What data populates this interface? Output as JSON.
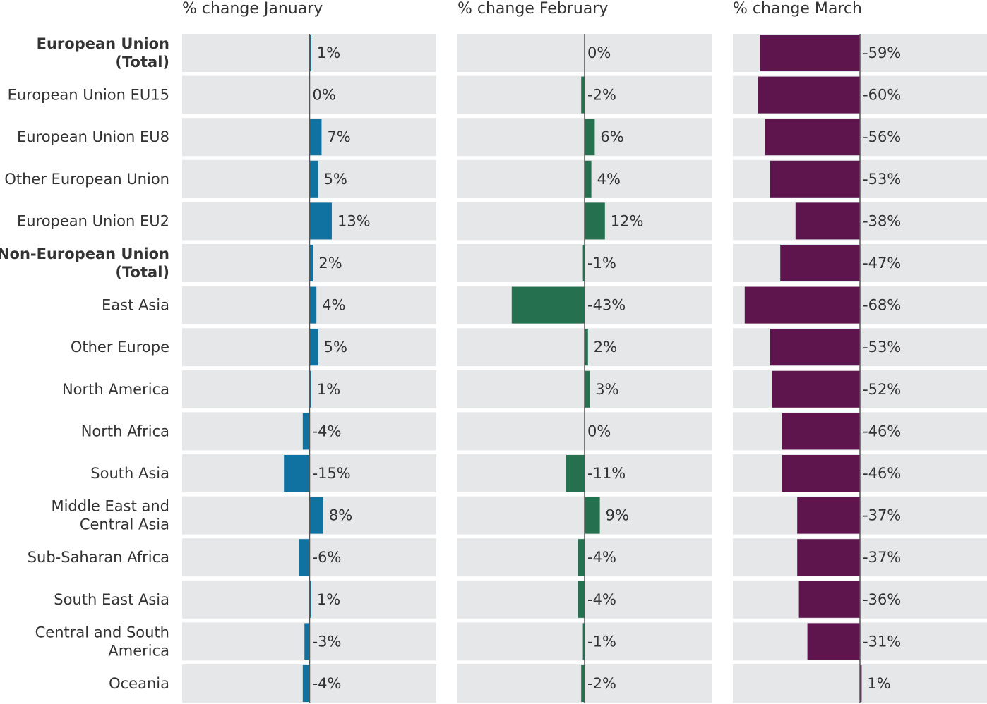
{
  "chart_data": {
    "type": "bar",
    "orientation": "horizontal",
    "categories": [
      "European Union (Total)",
      "European Union EU15",
      "European Union EU8",
      "Other European Union",
      "European Union EU2",
      "Non-European Union (Total)",
      "East Asia",
      "Other Europe",
      "North America",
      "North Africa",
      "South Asia",
      "Middle East and Central Asia",
      "Sub-Saharan Africa",
      "South East Asia",
      "Central and South America",
      "Oceania"
    ],
    "category_lines": [
      [
        "European Union",
        "(Total)"
      ],
      [
        "European Union EU15"
      ],
      [
        "European Union EU8"
      ],
      [
        "Other European Union"
      ],
      [
        "European Union EU2"
      ],
      [
        "Non-European Union",
        "(Total)"
      ],
      [
        "East Asia"
      ],
      [
        "Other Europe"
      ],
      [
        "North America"
      ],
      [
        "North Africa"
      ],
      [
        "South Asia"
      ],
      [
        "Middle East and",
        "Central Asia"
      ],
      [
        "Sub-Saharan Africa"
      ],
      [
        "South East Asia"
      ],
      [
        "Central and South",
        "America"
      ],
      [
        "Oceania"
      ]
    ],
    "bold_categories": [
      0,
      5
    ],
    "series": [
      {
        "name": "% change January",
        "color": "#0f72a0",
        "values": [
          1,
          0,
          7,
          5,
          13,
          2,
          4,
          5,
          1,
          -4,
          -15,
          8,
          -6,
          1,
          -3,
          -4
        ],
        "labels": [
          "1%",
          "0%",
          "7%",
          "5%",
          "13%",
          "2%",
          "4%",
          "5%",
          "1%",
          "-4%",
          "-15%",
          "8%",
          "-6%",
          "1%",
          "-3%",
          "-4%"
        ]
      },
      {
        "name": "% change February",
        "color": "#24704f",
        "values": [
          0,
          -2,
          6,
          4,
          12,
          -1,
          -43,
          2,
          3,
          0,
          -11,
          9,
          -4,
          -4,
          -1,
          -2
        ],
        "labels": [
          "0%",
          "-2%",
          "6%",
          "4%",
          "12%",
          "-1%",
          "-43%",
          "2%",
          "3%",
          "0%",
          "-11%",
          "9%",
          "-4%",
          "-4%",
          "-1%",
          "-2%"
        ]
      },
      {
        "name": "% change March",
        "color": "#5e154d",
        "values": [
          -59,
          -60,
          -56,
          -53,
          -38,
          -47,
          -68,
          -53,
          -52,
          -46,
          -46,
          -37,
          -37,
          -36,
          -31,
          1
        ],
        "labels": [
          "-59%",
          "-60%",
          "-56%",
          "-53%",
          "-38%",
          "-47%",
          "-68%",
          "-53%",
          "-52%",
          "-46%",
          "-46%",
          "-37%",
          "-37%",
          "-36%",
          "-31%",
          "1%"
        ]
      }
    ],
    "grid": false,
    "legend": "none",
    "colors": {
      "panel_background": "#e6e7e8",
      "zero_line": "#555555",
      "text": "#333333"
    }
  }
}
